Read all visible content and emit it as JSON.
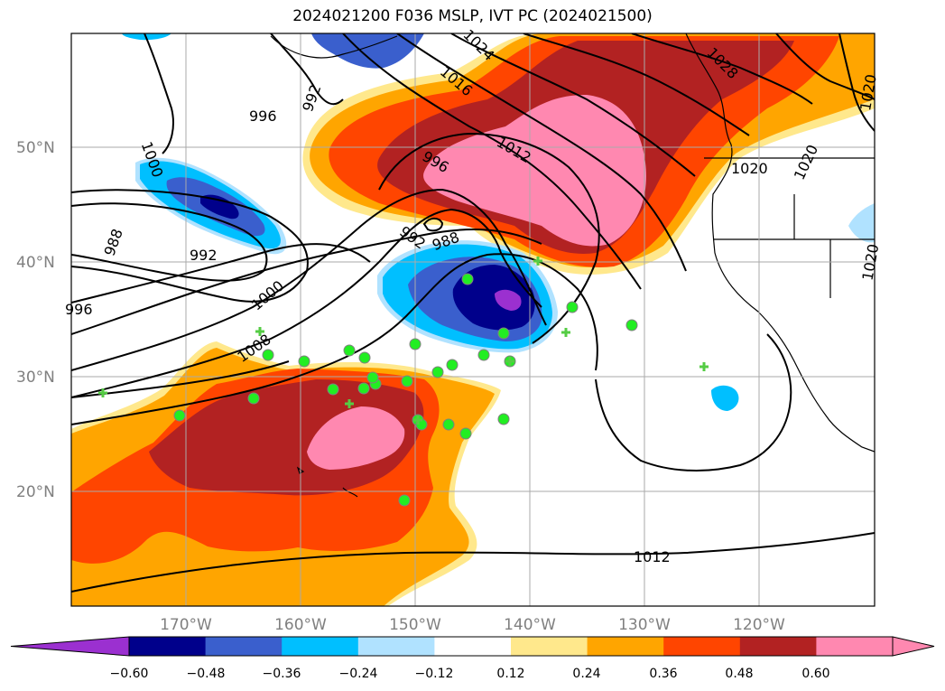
{
  "title": "2024021200 F036 MSLP, IVT PC (2024021500)",
  "axes": {
    "lat_labels": [
      "50°N",
      "40°N",
      "30°N",
      "20°N"
    ],
    "lon_labels": [
      "170°W",
      "160°W",
      "150°W",
      "140°W",
      "130°W",
      "120°W"
    ]
  },
  "isobar_labels": [
    "996",
    "992",
    "1000",
    "988",
    "992",
    "996",
    "1000",
    "1008",
    "988",
    "992",
    "996",
    "1012",
    "1016",
    "1024",
    "1028",
    "1020",
    "1020",
    "1020",
    "1020",
    "1012"
  ],
  "colorbar": {
    "ticks": [
      "−0.60",
      "−0.48",
      "−0.36",
      "−0.24",
      "−0.12",
      "0.12",
      "0.24",
      "0.36",
      "0.48",
      "0.60"
    ],
    "colors": [
      "#9b30d0",
      "#00008b",
      "#3a5fcd",
      "#00bfff",
      "#b0e2ff",
      "#ffffff",
      "#ffe88c",
      "#ffa500",
      "#ff4500",
      "#b22222",
      "#ff88b0",
      "#ff88b0"
    ]
  },
  "markers": {
    "circle_color": "#22ee22",
    "cross_color": "#55cc44"
  }
}
